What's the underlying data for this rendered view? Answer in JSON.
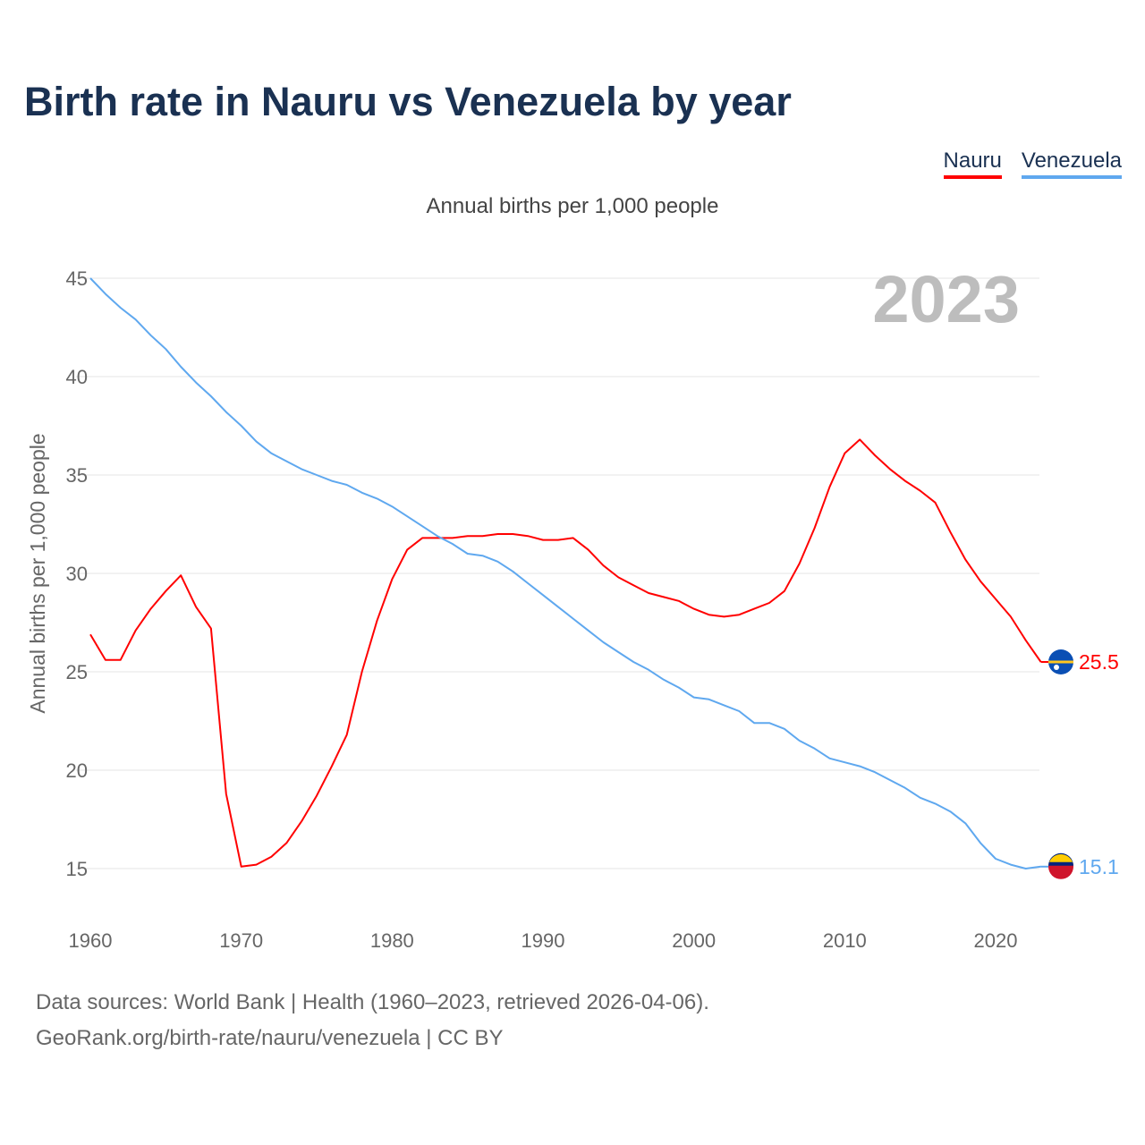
{
  "title": "Birth rate in Nauru vs Venezuela by year",
  "subtitle": "Annual births per 1,000 people",
  "year_badge": "2023",
  "footer": {
    "line1": "Data sources: World Bank | Health (1960–2023, retrieved 2026-04-06).",
    "line2": "GeoRank.org/birth-rate/nauru/venezuela | CC BY"
  },
  "chart_data": {
    "type": "line",
    "title": "Birth rate in Nauru vs Venezuela by year",
    "ylabel": "Annual births per 1,000 people",
    "xlabel": "",
    "xlim": [
      1960,
      2023
    ],
    "ylim": [
      12.5,
      46
    ],
    "yticks": [
      15,
      20,
      25,
      30,
      35,
      40,
      45
    ],
    "xticks": [
      1960,
      1970,
      1980,
      1990,
      2000,
      2010,
      2020
    ],
    "grid": true,
    "legend_position": "top-right",
    "x": [
      1960,
      1961,
      1962,
      1963,
      1964,
      1965,
      1966,
      1967,
      1968,
      1969,
      1970,
      1971,
      1972,
      1973,
      1974,
      1975,
      1976,
      1977,
      1978,
      1979,
      1980,
      1981,
      1982,
      1983,
      1984,
      1985,
      1986,
      1987,
      1988,
      1989,
      1990,
      1991,
      1992,
      1993,
      1994,
      1995,
      1996,
      1997,
      1998,
      1999,
      2000,
      2001,
      2002,
      2003,
      2004,
      2005,
      2006,
      2007,
      2008,
      2009,
      2010,
      2011,
      2012,
      2013,
      2014,
      2015,
      2016,
      2017,
      2018,
      2019,
      2020,
      2021,
      2022,
      2023
    ],
    "series": [
      {
        "name": "Nauru",
        "color": "#ff0000",
        "end_label": "25.5",
        "values": [
          26.9,
          25.6,
          25.6,
          27.1,
          28.2,
          29.1,
          29.9,
          28.3,
          27.2,
          18.8,
          15.1,
          15.2,
          15.6,
          16.3,
          17.4,
          18.7,
          20.2,
          21.8,
          25.0,
          27.6,
          29.7,
          31.2,
          31.8,
          31.8,
          31.8,
          31.9,
          31.9,
          32.0,
          32.0,
          31.9,
          31.7,
          31.7,
          31.8,
          31.2,
          30.4,
          29.8,
          29.4,
          29.0,
          28.8,
          28.6,
          28.2,
          27.9,
          27.8,
          27.9,
          28.2,
          28.5,
          29.1,
          30.5,
          32.3,
          34.4,
          36.1,
          36.8,
          36.0,
          35.3,
          34.7,
          34.2,
          33.6,
          32.1,
          30.7,
          29.6,
          28.7,
          27.8,
          26.6,
          25.5
        ]
      },
      {
        "name": "Venezuela",
        "color": "#5fa8ef",
        "end_label": "15.1",
        "values": [
          45.0,
          44.2,
          43.5,
          42.9,
          42.1,
          41.4,
          40.5,
          39.7,
          39.0,
          38.2,
          37.5,
          36.7,
          36.1,
          35.7,
          35.3,
          35.0,
          34.7,
          34.5,
          34.1,
          33.8,
          33.4,
          32.9,
          32.4,
          31.9,
          31.5,
          31.0,
          30.9,
          30.6,
          30.1,
          29.5,
          28.9,
          28.3,
          27.7,
          27.1,
          26.5,
          26.0,
          25.5,
          25.1,
          24.6,
          24.2,
          23.7,
          23.6,
          23.3,
          23.0,
          22.4,
          22.4,
          22.1,
          21.5,
          21.1,
          20.6,
          20.4,
          20.2,
          19.9,
          19.5,
          19.1,
          18.6,
          18.3,
          17.9,
          17.3,
          16.3,
          15.5,
          15.2,
          15.0,
          15.1
        ]
      }
    ]
  }
}
